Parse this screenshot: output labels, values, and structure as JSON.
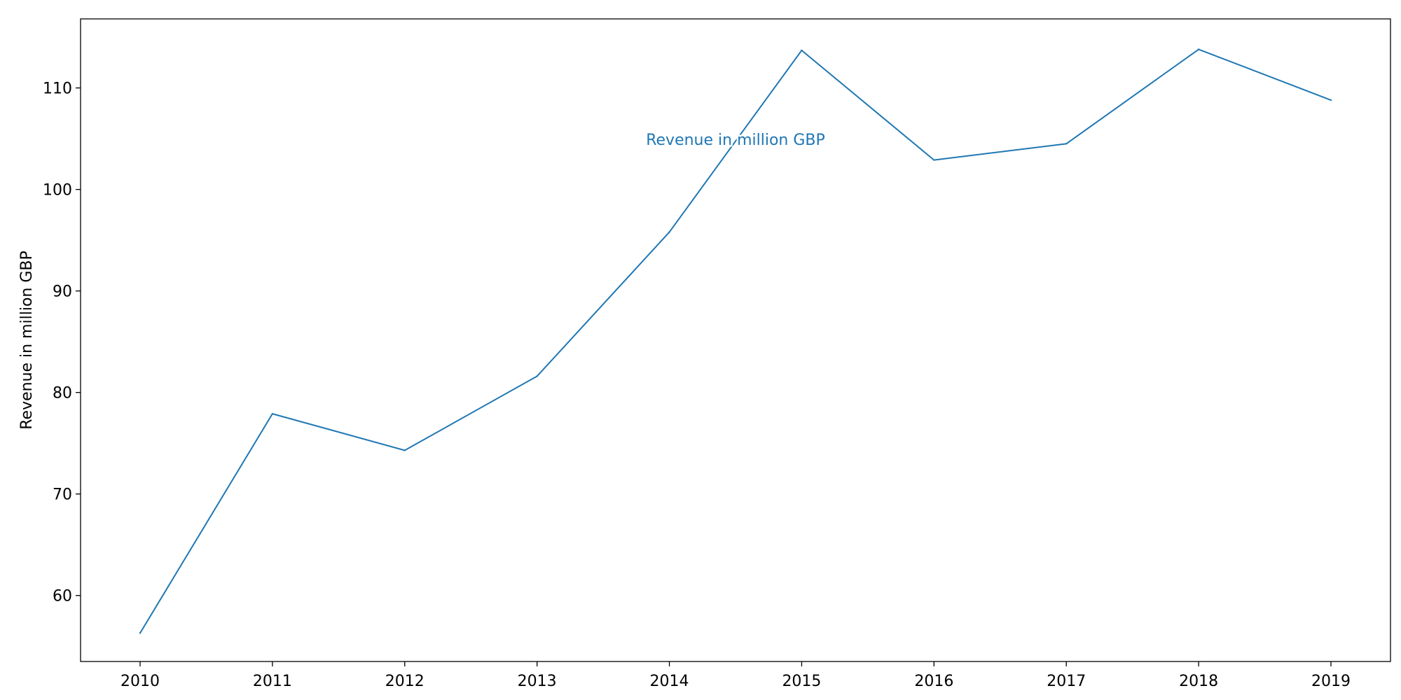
{
  "chart_data": {
    "type": "line",
    "title": "",
    "xlabel": "",
    "ylabel": "Revenue in million GBP",
    "x": [
      "2010",
      "2011",
      "2012",
      "2013",
      "2014",
      "2015",
      "2016",
      "2017",
      "2018",
      "2019"
    ],
    "series": [
      {
        "values": [
          56.3,
          77.9,
          74.3,
          81.6,
          95.8,
          113.7,
          102.9,
          104.5,
          113.8,
          108.8
        ]
      }
    ],
    "xlim": [
      2009.55,
      2019.45
    ],
    "ylim": [
      53.5,
      116.8
    ],
    "yticks": [
      60,
      70,
      80,
      90,
      100,
      110
    ],
    "grid": false,
    "legend": "none",
    "annotation": {
      "text": "Revenue in million GBP",
      "x": 2014.5,
      "y": 104.4
    },
    "colors": {
      "line": "#1f77b4",
      "annotation": "#1f77b4",
      "axes": "#000000"
    }
  }
}
